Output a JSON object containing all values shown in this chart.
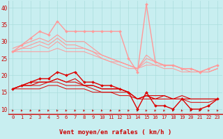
{
  "xlabel": "Vent moyen/en rafales ( km/h )",
  "background_color": "#c8eef0",
  "grid_color": "#aadddd",
  "x_ticks": [
    0,
    1,
    2,
    3,
    4,
    5,
    6,
    7,
    8,
    9,
    10,
    11,
    12,
    13,
    14,
    15,
    16,
    17,
    18,
    19,
    20,
    21,
    22,
    23
  ],
  "xlim": [
    -0.5,
    23.5
  ],
  "ylim": [
    8.5,
    42
  ],
  "y_ticks": [
    10,
    15,
    20,
    25,
    30,
    35,
    40
  ],
  "lines_dark": [
    {
      "x": [
        0,
        1,
        2,
        3,
        4,
        5,
        6,
        7,
        8,
        9,
        10,
        11,
        12,
        13,
        14,
        15,
        16,
        17,
        18,
        19,
        20,
        21,
        22,
        23
      ],
      "y": [
        16,
        17,
        18,
        19,
        19,
        21,
        20,
        21,
        18,
        18,
        17,
        17,
        16,
        15,
        10,
        15,
        11,
        11,
        10,
        13,
        10,
        10,
        11,
        13
      ],
      "color": "#dd0000",
      "lw": 1.0,
      "marker": "D",
      "ms": 2.0
    },
    {
      "x": [
        0,
        1,
        2,
        3,
        4,
        5,
        6,
        7,
        8,
        9,
        10,
        11,
        12,
        13,
        14,
        15,
        16,
        17,
        18,
        19,
        20,
        21,
        22,
        23
      ],
      "y": [
        16,
        17,
        18,
        18,
        18,
        19,
        18,
        19,
        17,
        17,
        16,
        16,
        16,
        15,
        13,
        14,
        13,
        14,
        13,
        13,
        13,
        13,
        13,
        13
      ],
      "color": "#dd0000",
      "lw": 0.8,
      "marker": null,
      "ms": 0
    },
    {
      "x": [
        0,
        1,
        2,
        3,
        4,
        5,
        6,
        7,
        8,
        9,
        10,
        11,
        12,
        13,
        14,
        15,
        16,
        17,
        18,
        19,
        20,
        21,
        22,
        23
      ],
      "y": [
        16,
        17,
        17,
        18,
        18,
        19,
        18,
        18,
        17,
        17,
        16,
        16,
        16,
        15,
        13,
        14,
        14,
        14,
        13,
        14,
        13,
        13,
        13,
        13
      ],
      "color": "#dd0000",
      "lw": 0.8,
      "marker": null,
      "ms": 0
    },
    {
      "x": [
        0,
        1,
        2,
        3,
        4,
        5,
        6,
        7,
        8,
        9,
        10,
        11,
        12,
        13,
        14,
        15,
        16,
        17,
        18,
        19,
        20,
        21,
        22,
        23
      ],
      "y": [
        16,
        17,
        17,
        17,
        18,
        18,
        17,
        17,
        17,
        16,
        15,
        15,
        15,
        15,
        13,
        14,
        13,
        13,
        13,
        13,
        13,
        13,
        13,
        13
      ],
      "color": "#dd0000",
      "lw": 0.7,
      "marker": null,
      "ms": 0
    },
    {
      "x": [
        0,
        1,
        2,
        3,
        4,
        5,
        6,
        7,
        8,
        9,
        10,
        11,
        12,
        13,
        14,
        15,
        16,
        17,
        18,
        19,
        20,
        21,
        22,
        23
      ],
      "y": [
        16,
        16,
        16,
        16,
        17,
        17,
        16,
        16,
        16,
        15,
        15,
        15,
        14,
        14,
        13,
        13,
        13,
        13,
        13,
        13,
        12,
        12,
        12,
        13
      ],
      "color": "#dd0000",
      "lw": 0.7,
      "marker": null,
      "ms": 0
    }
  ],
  "lines_light": [
    {
      "x": [
        0,
        1,
        2,
        3,
        4,
        5,
        6,
        7,
        8,
        9,
        10,
        11,
        12,
        13,
        14,
        15,
        16,
        17,
        18,
        19,
        20,
        21,
        22,
        23
      ],
      "y": [
        27,
        29,
        31,
        33,
        32,
        36,
        33,
        33,
        33,
        33,
        33,
        33,
        33,
        25,
        21,
        41,
        24,
        23,
        23,
        22,
        22,
        21,
        22,
        23
      ],
      "color": "#ff9999",
      "lw": 1.0,
      "marker": "D",
      "ms": 2.0
    },
    {
      "x": [
        0,
        1,
        2,
        3,
        4,
        5,
        6,
        7,
        8,
        9,
        10,
        11,
        12,
        13,
        14,
        15,
        16,
        17,
        18,
        19,
        20,
        21,
        22,
        23
      ],
      "y": [
        28,
        29,
        30,
        31,
        30,
        32,
        30,
        30,
        30,
        28,
        26,
        25,
        24,
        23,
        22,
        26,
        24,
        23,
        23,
        22,
        22,
        21,
        22,
        23
      ],
      "color": "#ff9999",
      "lw": 0.8,
      "marker": null,
      "ms": 0
    },
    {
      "x": [
        0,
        1,
        2,
        3,
        4,
        5,
        6,
        7,
        8,
        9,
        10,
        11,
        12,
        13,
        14,
        15,
        16,
        17,
        18,
        19,
        20,
        21,
        22,
        23
      ],
      "y": [
        27,
        28,
        29,
        30,
        29,
        31,
        29,
        29,
        28,
        27,
        26,
        25,
        24,
        23,
        22,
        25,
        24,
        23,
        23,
        22,
        22,
        21,
        21,
        22
      ],
      "color": "#ff9999",
      "lw": 0.8,
      "marker": null,
      "ms": 0
    },
    {
      "x": [
        0,
        1,
        2,
        3,
        4,
        5,
        6,
        7,
        8,
        9,
        10,
        11,
        12,
        13,
        14,
        15,
        16,
        17,
        18,
        19,
        20,
        21,
        22,
        23
      ],
      "y": [
        27,
        28,
        28,
        29,
        28,
        30,
        28,
        28,
        28,
        27,
        25,
        24,
        24,
        23,
        22,
        24,
        23,
        23,
        23,
        22,
        21,
        21,
        21,
        22
      ],
      "color": "#ff9999",
      "lw": 0.7,
      "marker": null,
      "ms": 0
    },
    {
      "x": [
        0,
        1,
        2,
        3,
        4,
        5,
        6,
        7,
        8,
        9,
        10,
        11,
        12,
        13,
        14,
        15,
        16,
        17,
        18,
        19,
        20,
        21,
        22,
        23
      ],
      "y": [
        27,
        27,
        27,
        27,
        27,
        28,
        27,
        27,
        27,
        26,
        25,
        24,
        23,
        22,
        22,
        23,
        23,
        22,
        22,
        21,
        21,
        21,
        21,
        22
      ],
      "color": "#ff9999",
      "lw": 0.7,
      "marker": null,
      "ms": 0
    }
  ],
  "arrow_color": "#cc0000",
  "axis_line_color": "#cc0000",
  "tick_color": "#cc0000",
  "xlabel_fontsize": 6.5,
  "tick_fontsize": 5.0
}
